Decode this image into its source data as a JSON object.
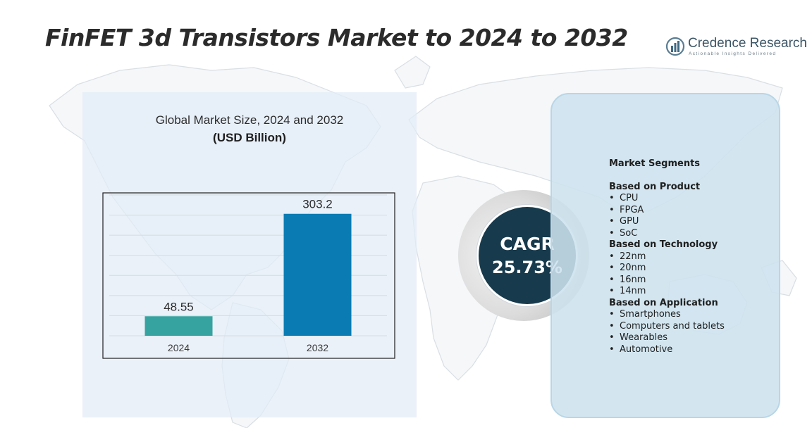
{
  "header": {
    "title": "FinFET 3d Transistors Market to 2024 to 2032"
  },
  "brand": {
    "name": "Credence Research",
    "tagline": "Actionable Insights Delivered",
    "logo_icon": "bar-chart-globe-icon"
  },
  "chart": {
    "title": "Global Market Size,  2024 and 2032",
    "subtitle": "(USD Billion)"
  },
  "chart_data": {
    "type": "bar",
    "categories": [
      "2024",
      "2032"
    ],
    "values": [
      48.55,
      303.2
    ],
    "value_labels": [
      "48.55",
      "303.2"
    ],
    "colors": [
      "#36a3a0",
      "#0a7cb3"
    ],
    "title": "Global Market Size,  2024 and 2032",
    "subtitle": "(USD Billion)",
    "xlabel": "",
    "ylabel": "",
    "ylim": [
      0,
      350
    ],
    "grid": true,
    "legend": "none"
  },
  "cagr": {
    "label": "CAGR",
    "value": "25.73%"
  },
  "segments": {
    "heading": "Market Segments",
    "groups": [
      {
        "title": "Based on Product",
        "items": [
          "CPU",
          "FPGA",
          "GPU",
          "SoC"
        ]
      },
      {
        "title": "Based on Technology",
        "items": [
          "22nm",
          "20nm",
          "16nm",
          "14nm"
        ]
      },
      {
        "title": "Based on Application",
        "items": [
          "Smartphones",
          "Computers and tablets",
          "Wearables",
          "Automotive"
        ]
      }
    ],
    "bullet": "•"
  },
  "colors": {
    "title": "#2b2b2b",
    "cagr_circle": "#173a4c",
    "segment_panel": "#cde2ee",
    "chart_panel": "#e2ecf6"
  }
}
